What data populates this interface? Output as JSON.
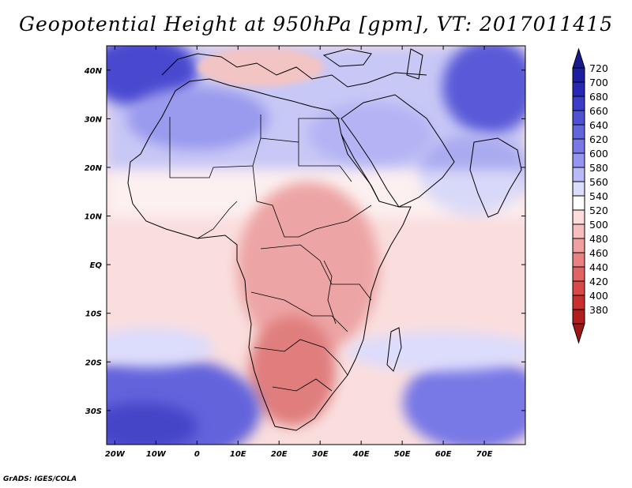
{
  "title": "Geopotential Height at 950hPa [gpm], VT: 2017011415",
  "credit": "GrADS: IGES/COLA",
  "lat_labels": [
    "40N",
    "30N",
    "20N",
    "10N",
    "EQ",
    "10S",
    "20S",
    "30S"
  ],
  "lat_values": [
    40,
    30,
    20,
    10,
    0,
    -10,
    -20,
    -30
  ],
  "lon_labels": [
    "20W",
    "10W",
    "0",
    "10E",
    "20E",
    "30E",
    "40E",
    "50E",
    "60E",
    "70E"
  ],
  "lon_values": [
    -20,
    -10,
    0,
    10,
    20,
    30,
    40,
    50,
    60,
    70
  ],
  "extent": {
    "lon_min": -22,
    "lon_max": 80,
    "lat_min": -37,
    "lat_max": 45
  },
  "colorbar": {
    "levels": [
      "720",
      "700",
      "680",
      "660",
      "640",
      "620",
      "600",
      "580",
      "560",
      "540",
      "520",
      "500",
      "480",
      "460",
      "440",
      "420",
      "400",
      "380"
    ],
    "colors": [
      "#1e1ea0",
      "#2828b4",
      "#3c3cc8",
      "#5050d2",
      "#6464dc",
      "#7878e6",
      "#9696f0",
      "#b9b9f8",
      "#dcdcfc",
      "#ffffff",
      "#fcdcdc",
      "#f8bebe",
      "#f0a0a0",
      "#e88282",
      "#e06464",
      "#d84a4a",
      "#c83030",
      "#b01e1e"
    ],
    "top_arrow_color": "#1a1a90",
    "bottom_arrow_color": "#a01616"
  },
  "colors": {
    "frame": "#000000",
    "ocean_base": "#f6d4d2",
    "land_low": "#e8928e",
    "deep_blue": "#4444c8"
  }
}
